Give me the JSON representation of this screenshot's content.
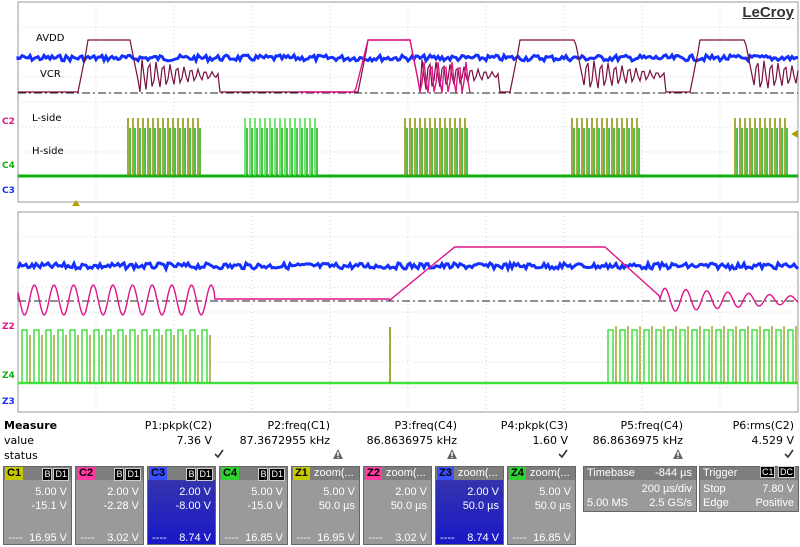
{
  "brand": "LeCroy",
  "trace_labels": {
    "avdd": "AVDD",
    "vcr": "VCR",
    "lside": "L-side",
    "hside": "H-side"
  },
  "channel_tags": {
    "c2": "C2",
    "c4": "C4",
    "c3": "C3",
    "z2": "Z2",
    "z4": "Z4",
    "z3": "Z3"
  },
  "colors": {
    "c1": "#8a8a00",
    "c2": "#e0158a",
    "c3": "#1430ff",
    "c4": "#10b010",
    "z4": "#40e040",
    "vcr": "#7a0f3e",
    "grid": "#9a9a9a"
  },
  "measure": {
    "title": "Measure",
    "row_labels": {
      "value": "value",
      "status": "status"
    },
    "params": [
      {
        "name": "P1:pkpk(C2)",
        "value": "7.36 V",
        "status": "check"
      },
      {
        "name": "P2:freq(C1)",
        "value": "87.3672955 kHz",
        "status": "warning"
      },
      {
        "name": "P3:freq(C4)",
        "value": "86.8636975 kHz",
        "status": "warning"
      },
      {
        "name": "P4:pkpk(C3)",
        "value": "1.60 V",
        "status": "check"
      },
      {
        "name": "P5:freq(C4)",
        "value": "86.8636975 kHz",
        "status": "warning"
      },
      {
        "name": "P6:rms(C2)",
        "value": "4.529 V",
        "status": "check"
      }
    ]
  },
  "tiles": [
    {
      "name": "C1",
      "badges": [
        "B",
        "D1"
      ],
      "l1": "5.00 V",
      "l2": "-15.1 V",
      "l3": "16.95 V",
      "color": "#c8c800",
      "selected": false
    },
    {
      "name": "C2",
      "badges": [
        "B",
        "D1"
      ],
      "l1": "2.00 V",
      "l2": "-2.28 V",
      "l3": "3.02 V",
      "color": "#ff3aa0",
      "selected": false
    },
    {
      "name": "C3",
      "badges": [
        "B",
        "D1"
      ],
      "l1": "2.00 V",
      "l2": "-8.00 V",
      "l3": "8.74 V",
      "color": "#3a50ff",
      "selected": true
    },
    {
      "name": "C4",
      "badges": [
        "B",
        "D1"
      ],
      "l1": "5.00 V",
      "l2": "-15.0 V",
      "l3": "16.85 V",
      "color": "#30d030",
      "selected": false
    },
    {
      "name": "Z1",
      "badges": [],
      "head": "zoom(...",
      "l1": "5.00 V",
      "l2": "50.0 µs",
      "l3": "16.95 V",
      "color": "#c8c800",
      "selected": false
    },
    {
      "name": "Z2",
      "badges": [],
      "head": "zoom(...",
      "l1": "2.00 V",
      "l2": "50.0 µs",
      "l3": "3.02 V",
      "color": "#ff3aa0",
      "selected": false
    },
    {
      "name": "Z3",
      "badges": [],
      "head": "zoom(...",
      "l1": "2.00 V",
      "l2": "50.0 µs",
      "l3": "8.74 V",
      "color": "#3a50ff",
      "selected": true
    },
    {
      "name": "Z4",
      "badges": [],
      "head": "zoom(...",
      "l1": "5.00 V",
      "l2": "50.0 µs",
      "l3": "16.85 V",
      "color": "#30d030",
      "selected": false
    }
  ],
  "tile_dash": "----",
  "timebase": {
    "label": "Timebase",
    "delay": "-844 µs",
    "per_div": "200 µs/div",
    "samples": "5.00 MS",
    "rate": "2.5 GS/s"
  },
  "trigger": {
    "label": "Trigger",
    "src": "C1",
    "coupling": "DC",
    "mode": "Stop",
    "level": "7.80 V",
    "type": "Edge",
    "slope": "Positive"
  }
}
